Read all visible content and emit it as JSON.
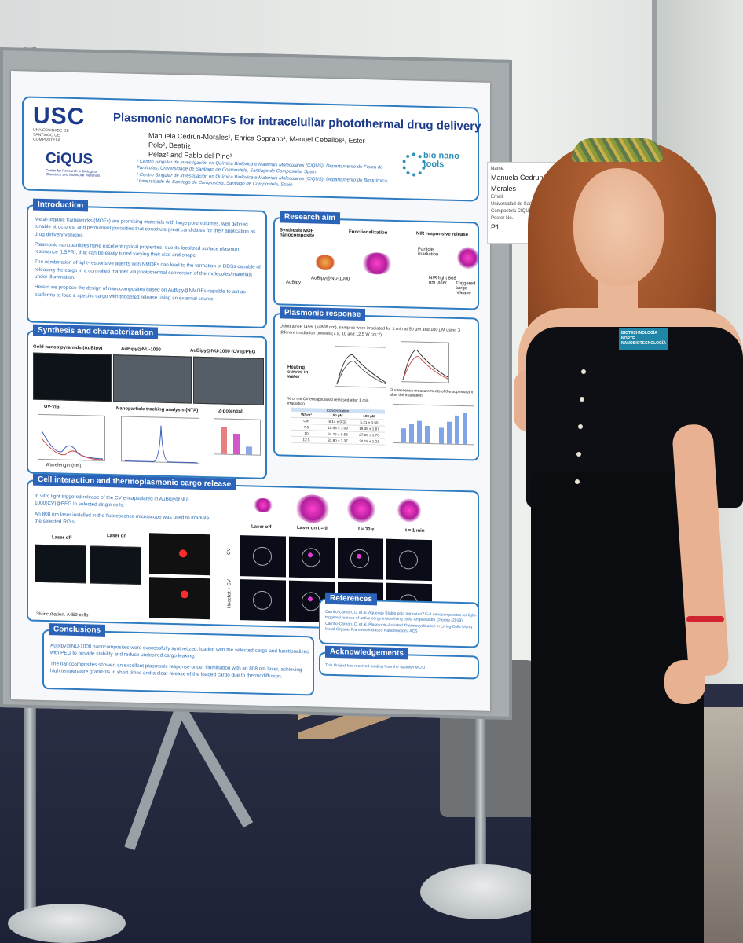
{
  "poster": {
    "title": "Plasmonic nanoMOFs for intracelullar photothermal drug delivery",
    "authors_line1": "Manuela Cedrún-Morales¹, Enrica Soprano¹, Manuel Ceballos¹, Ester Polo², Beatriz",
    "authors_line2": "Pelaz² and Pablo del Pino¹",
    "affiliation1": "¹ Centro Singular de Investigación en Química Biolóxica e Materiais Moleculares (CiQUS), Departamento de Física de Partículas, Universidade de Santiago de Compostela, Santiago de Compostela, Spain",
    "affiliation2": "² Centro Singular de Investigación en Química Biolóxica e Materiais Moleculares (CiQUS), Departamento de Bioquímica, Universidade de Santiago de Compostela, Santiago de Compostela, Spain",
    "logo_usc": "USC",
    "logo_usc_sub": "UNIVERSIDADE DE SANTIAGO DE COMPOSTELA",
    "logo_ciqus": "CiQUS",
    "logo_ciqus_sub": "Center for Research in Biological Chemistry and Molecular Materials",
    "logo_bio": "bio nano tools",
    "introduction": {
      "label": "Introduction",
      "p1": "Metal-organic frameworks (MOFs) are promising materials with large pore volumes, well defined tunable structures, and permanent porosities that constitute great candidates for their application as drug delivery vehicles.",
      "p2": "Plasmonic nanoparticles have excellent optical properties, due its localized surface plasmon resonance (LSPR), that can be easily tuned varying their size and shape.",
      "p3": "The combination of light-responsive agents with NMOFs can lead to the formation of DDSs capable of releasing the cargo in a controlled manner via photothermal conversion of the molecules/materials under illumination.",
      "p4": "Herein we propose the design of nanocomposites based on AuBipy@NMOFs capable to act as platforms to load a specific cargo with triggered release using an external source."
    },
    "research_aim": {
      "label": "Research aim",
      "step1": "Synthesis MOF nanocomposite",
      "step2": "Functionalization",
      "step3": "NIR responsive release",
      "aubipy": "AuBipy",
      "aubipy_nu": "AuBipy@NU-1000",
      "particle_irradiation": "Particle irradiation",
      "nir_light": "NIR light 808 nm laser",
      "triggered": "Triggered cargo release"
    },
    "synthesis": {
      "label": "Synthesis and characterization",
      "gold": "Gold nanobipyramids (AuBipy)",
      "nu1000": "AuBipy@NU-1000",
      "cvpeg": "AuBipy@NU-1000 (CV)@PEG",
      "uvvis": "UV-VIS",
      "nta": "Nanoparticle tracking analysis (NTA)",
      "zeta": "Z-potential",
      "wavelength": "Wavelength (nm)"
    },
    "plasmonic": {
      "label": "Plasmonic response",
      "text": "Using a NIR laser (λ=808 nm), samples were irradiated for 1 min at 50 µM and 100 µM using 3 different irradiation powers (7.5, 10 and 12.5 W cm⁻²)",
      "heating": "Heating curves in water",
      "fluo": "Fluorescence measurements of the supernatant after the irradiation",
      "table_caption": "% of the CV encapsulated released after 1 min irradiation",
      "table_header": "Concentration",
      "rows": [
        [
          "W/cm²",
          "50 µM",
          "100 µM"
        ],
        [
          "Ctrl",
          "8.14 ± 0.32",
          "5.21 ± 0.50"
        ],
        [
          "7.5",
          "10.53 ± 1.09",
          "19.35 ± 1.87"
        ],
        [
          "10",
          "24.26 ± 0.58",
          "27.09 ± 1.70"
        ],
        [
          "12.5",
          "31.90 ± 1.37",
          "30.18 ± 1.21"
        ]
      ]
    },
    "cell": {
      "label": "Cell interaction and thermoplasmonic cargo release",
      "p1": "In vitro light triggered release of the CV encapsulated in AuBipy@NU-1000(CV)@PEG in selected single cells.",
      "p2": "An 808 nm laser installed in the fluorescence microscope was used to irradiate the selected ROIs.",
      "laser_off": "Laser off",
      "laser_on": "Laser on",
      "incubation": "3h incubation. A459 cells",
      "panel_labels": [
        "Laser off",
        "Laser on t = 0",
        "t = 30 s",
        "t = 1 min"
      ],
      "row1": "CV",
      "row2": "Hoechst + CV"
    },
    "conclusions": {
      "label": "Conclusions",
      "p1": "AuBipy@NU-1000 nanocomposites were successfully synthetized, loaded with the selected cargo and functionalized with PEG to provide stability and reduce undesired cargo leaking.",
      "p2": "The nanocomposites showed an excellent plasmonic response under illumination with an 808 nm laser, achieving high temperature gradients in short times and a clear release of the loaded cargo due to thermodiffusion."
    },
    "references": {
      "label": "References",
      "text": "Carrillo-Carrión, C. et al. Aqueous Stable gold nanostar/ZIF-8 nanocomposites for light-triggered release of active cargo inside living cells. Angewandte Chemie (2019). Carrillo-Carrión, C. et al. Plasmonic-Assisted Thermocyclization in Living Cells Using Metal-Organic Framework Based Nanoreactors. ACS"
    },
    "acknowledgements": {
      "label": "Acknowledgements",
      "text": "This Project has received funding from the Spanish MCIU"
    }
  },
  "name_card": {
    "name_label": "Name:",
    "name": "Manuela Cedrun Morales",
    "email_label": "Email:",
    "affiliation": "Universidad de Santiago de Compostela CIQUS",
    "poster_label": "Poster No.:",
    "poster_no": "P1"
  },
  "badge": {
    "text": "BIOTECHNOLOGÍA NORTE NANOBIOTECNOLOGÍA"
  }
}
